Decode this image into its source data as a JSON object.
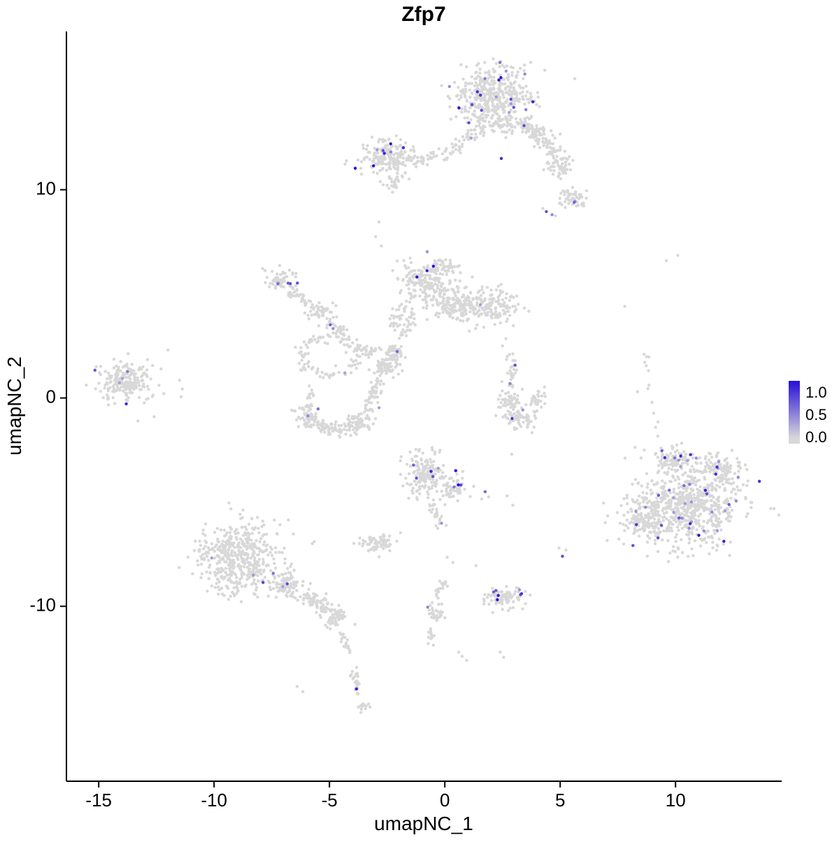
{
  "title": "Zfp7",
  "axes": {
    "x_label": "umapNC_1",
    "y_label": "umapNC_2",
    "x_ticks": [
      -15,
      -10,
      -5,
      0,
      5,
      10
    ],
    "y_ticks": [
      -10,
      0,
      10
    ]
  },
  "legend": {
    "ticks": [
      "1.0",
      "0.5",
      "0.0"
    ]
  },
  "colors": {
    "low": "#d8d8d8",
    "high": "#2a12d8",
    "axis": "#000000",
    "background": "#ffffff"
  },
  "chart_data": {
    "type": "scatter",
    "title": "Zfp7",
    "xlabel": "umapNC_1",
    "ylabel": "umapNC_2",
    "xlim": [
      -16.4,
      14.6
    ],
    "ylim": [
      -18.4,
      17.6
    ],
    "grid": false,
    "legend_position": "right",
    "colorbar": {
      "label_values": [
        1.0,
        0.5,
        0.0
      ],
      "value_top": 1.28,
      "value_bottom": -0.12,
      "low_color": "#d8d8d8",
      "high_color": "#2a12d8"
    },
    "point_radius_px": 2.2,
    "expression_value_range": [
      0.35,
      1.3
    ],
    "clusters": [
      {
        "name": "top-main",
        "type": "blob",
        "cx": 2.1,
        "cy": 14.6,
        "rx": 1.5,
        "ry": 1.25,
        "n": 400,
        "expr_frac": 0.04
      },
      {
        "name": "top-main-south",
        "type": "blob",
        "cx": 2.4,
        "cy": 13.2,
        "rx": 1.0,
        "ry": 0.5,
        "n": 80,
        "expr_frac": 0.02
      },
      {
        "name": "top-arm",
        "type": "strand",
        "x1": 3.4,
        "y1": 13.2,
        "x2": 4.8,
        "y2": 11.8,
        "w": 0.45,
        "n": 110,
        "expr_frac": 0.01
      },
      {
        "name": "top-arm-blob",
        "type": "blob",
        "cx": 5.0,
        "cy": 11.2,
        "rx": 0.55,
        "ry": 0.5,
        "n": 60,
        "expr_frac": 0
      },
      {
        "name": "top-right-blob",
        "type": "blob",
        "cx": 5.6,
        "cy": 9.6,
        "rx": 0.55,
        "ry": 0.45,
        "n": 55,
        "expr_frac": 0.05
      },
      {
        "name": "top-bridge",
        "type": "strand",
        "x1": 0.3,
        "y1": 11.9,
        "x2": 1.7,
        "y2": 13.1,
        "w": 0.35,
        "n": 45,
        "expr_frac": 0.02
      },
      {
        "name": "upper-left-main",
        "type": "blob",
        "cx": -2.55,
        "cy": 11.5,
        "rx": 1.05,
        "ry": 0.75,
        "n": 190,
        "expr_frac": 0.05
      },
      {
        "name": "upper-left-arm",
        "type": "strand",
        "x1": -1.3,
        "y1": 11.3,
        "x2": 0.2,
        "y2": 11.8,
        "w": 0.3,
        "n": 40,
        "expr_frac": 0
      },
      {
        "name": "upper-left-spur",
        "type": "blob",
        "cx": -2.25,
        "cy": 10.35,
        "rx": 0.4,
        "ry": 0.3,
        "n": 25,
        "expr_frac": 0
      },
      {
        "name": "mid-left-lobe",
        "type": "blob",
        "cx": -0.9,
        "cy": 5.6,
        "rx": 0.95,
        "ry": 1.0,
        "n": 180,
        "expr_frac": 0.02
      },
      {
        "name": "mid-center-lobe",
        "type": "blob",
        "cx": 0.4,
        "cy": 4.6,
        "rx": 1.0,
        "ry": 0.85,
        "n": 170,
        "expr_frac": 0.01
      },
      {
        "name": "mid-right-lobe",
        "type": "blob",
        "cx": 2.0,
        "cy": 4.35,
        "rx": 1.05,
        "ry": 0.7,
        "n": 150,
        "expr_frac": 0.013
      },
      {
        "name": "mid-top-bump",
        "type": "blob",
        "cx": 0.0,
        "cy": 6.3,
        "rx": 0.5,
        "ry": 0.4,
        "n": 40,
        "expr_frac": 0.05
      },
      {
        "name": "mid-tail",
        "type": "strand",
        "x1": -1.6,
        "y1": 4.4,
        "x2": -2.3,
        "y2": 3.4,
        "w": 0.3,
        "n": 30,
        "expr_frac": 0
      },
      {
        "name": "chain-top-blob",
        "type": "blob",
        "cx": -7.2,
        "cy": 5.75,
        "rx": 0.6,
        "ry": 0.5,
        "n": 55,
        "expr_frac": 0.09
      },
      {
        "name": "chain-strand-1",
        "type": "strand",
        "x1": -6.7,
        "y1": 5.2,
        "x2": -5.9,
        "y2": 4.5,
        "w": 0.3,
        "n": 35,
        "expr_frac": 0.03
      },
      {
        "name": "chain-mid-blob",
        "type": "blob",
        "cx": -5.4,
        "cy": 4.15,
        "rx": 0.5,
        "ry": 0.4,
        "n": 45,
        "expr_frac": 0
      },
      {
        "name": "chain-strand-2",
        "type": "strand",
        "x1": -5.1,
        "y1": 3.7,
        "x2": -4.4,
        "y2": 3.1,
        "w": 0.25,
        "n": 25,
        "expr_frac": 0.06
      },
      {
        "name": "chain-ring",
        "type": "ring",
        "cx": -5.0,
        "cy": 2.0,
        "rx": 1.25,
        "ry": 0.95,
        "band": 0.3,
        "n": 105,
        "expr_frac": 0.01
      },
      {
        "name": "chain-link",
        "type": "strand",
        "x1": -3.9,
        "y1": 2.5,
        "x2": -3.1,
        "y2": 2.15,
        "w": 0.25,
        "n": 30,
        "expr_frac": 0
      },
      {
        "name": "far-left-main",
        "type": "blob",
        "cx": -13.9,
        "cy": 0.8,
        "rx": 0.95,
        "ry": 0.8,
        "n": 180,
        "expr_frac": 0.035
      },
      {
        "name": "far-left-halo",
        "type": "blob",
        "cx": -13.6,
        "cy": 0.6,
        "rx": 1.5,
        "ry": 1.2,
        "n": 30,
        "expr_frac": 0
      },
      {
        "name": "loop-blob-1",
        "type": "blob",
        "cx": -5.9,
        "cy": -0.9,
        "rx": 0.55,
        "ry": 0.5,
        "n": 65,
        "expr_frac": 0.02
      },
      {
        "name": "loop-strand-1",
        "type": "strand",
        "x1": -5.4,
        "y1": -1.35,
        "x2": -4.3,
        "y2": -1.6,
        "w": 0.3,
        "n": 55,
        "expr_frac": 0
      },
      {
        "name": "loop-blob-2",
        "type": "blob",
        "cx": -3.8,
        "cy": -1.15,
        "rx": 0.65,
        "ry": 0.5,
        "n": 75,
        "expr_frac": 0.013
      },
      {
        "name": "loop-strand-2",
        "type": "strand",
        "x1": -3.4,
        "y1": -0.5,
        "x2": -2.8,
        "y2": 0.8,
        "w": 0.3,
        "n": 45,
        "expr_frac": 0
      },
      {
        "name": "loop-blob-3",
        "type": "blob",
        "cx": -2.55,
        "cy": 1.5,
        "rx": 0.55,
        "ry": 0.5,
        "n": 65,
        "expr_frac": 0.03
      },
      {
        "name": "loop-dense",
        "type": "blob",
        "cx": -2.2,
        "cy": 2.15,
        "rx": 0.35,
        "ry": 0.3,
        "n": 45,
        "expr_frac": 0
      },
      {
        "name": "loop-up-strand",
        "type": "strand",
        "x1": -1.9,
        "y1": 2.9,
        "x2": -1.3,
        "y2": 4.1,
        "w": 0.25,
        "n": 25,
        "expr_frac": 0
      },
      {
        "name": "loop-left-link",
        "type": "strand",
        "x1": -5.75,
        "y1": 0.5,
        "x2": -5.95,
        "y2": -0.4,
        "w": 0.2,
        "n": 18,
        "expr_frac": 0
      },
      {
        "name": "right-mid-blob-1",
        "type": "blob",
        "cx": 2.75,
        "cy": -0.15,
        "rx": 0.5,
        "ry": 0.55,
        "n": 55,
        "expr_frac": 0
      },
      {
        "name": "right-mid-blob-2",
        "type": "blob",
        "cx": 3.35,
        "cy": -0.95,
        "rx": 0.6,
        "ry": 0.5,
        "n": 70,
        "expr_frac": 0.04
      },
      {
        "name": "right-mid-strand",
        "type": "strand",
        "x1": 3.8,
        "y1": -0.3,
        "x2": 4.3,
        "y2": 0.4,
        "w": 0.25,
        "n": 25,
        "expr_frac": 0
      },
      {
        "name": "right-mid-up",
        "type": "strand",
        "x1": 2.85,
        "y1": 0.5,
        "x2": 2.95,
        "y2": 2.1,
        "w": 0.2,
        "n": 30,
        "expr_frac": 0.04
      },
      {
        "name": "center-low-main",
        "type": "blob",
        "cx": -0.8,
        "cy": -3.6,
        "rx": 0.85,
        "ry": 0.95,
        "n": 170,
        "expr_frac": 0.045
      },
      {
        "name": "center-low-right",
        "type": "blob",
        "cx": 0.3,
        "cy": -4.3,
        "rx": 0.5,
        "ry": 0.5,
        "n": 55,
        "expr_frac": 0.02
      },
      {
        "name": "center-low-tail",
        "type": "strand",
        "x1": -0.6,
        "y1": -5.0,
        "x2": -0.1,
        "y2": -6.3,
        "w": 0.25,
        "n": 22,
        "expr_frac": 0.04
      },
      {
        "name": "small-left-blob",
        "type": "blob",
        "cx": -2.9,
        "cy": -6.95,
        "rx": 0.65,
        "ry": 0.4,
        "n": 65,
        "expr_frac": 0
      },
      {
        "name": "lower-left-main",
        "type": "blob",
        "cx": -8.9,
        "cy": -7.7,
        "rx": 1.6,
        "ry": 1.5,
        "n": 430,
        "expr_frac": 0.008
      },
      {
        "name": "lower-left-halo",
        "type": "blob",
        "cx": -8.7,
        "cy": -7.5,
        "rx": 2.3,
        "ry": 2.1,
        "n": 60,
        "expr_frac": 0
      },
      {
        "name": "lower-left-ext",
        "type": "blob",
        "cx": -6.9,
        "cy": -9.0,
        "rx": 0.7,
        "ry": 0.6,
        "n": 85,
        "expr_frac": 0.01
      },
      {
        "name": "lower-left-strand",
        "type": "strand",
        "x1": -6.1,
        "y1": -9.4,
        "x2": -5.0,
        "y2": -10.2,
        "w": 0.35,
        "n": 60,
        "expr_frac": 0.02
      },
      {
        "name": "lower-left-blob-2",
        "type": "blob",
        "cx": -4.7,
        "cy": -10.5,
        "rx": 0.5,
        "ry": 0.45,
        "n": 55,
        "expr_frac": 0.02
      },
      {
        "name": "tail-strand-1",
        "type": "strand",
        "x1": -4.5,
        "y1": -11.2,
        "x2": -4.15,
        "y2": -12.3,
        "w": 0.2,
        "n": 20,
        "expr_frac": 0
      },
      {
        "name": "tail-strand-2",
        "type": "strand",
        "x1": -4.0,
        "y1": -12.9,
        "x2": -3.7,
        "y2": -14.3,
        "w": 0.18,
        "n": 26,
        "expr_frac": 0.05
      },
      {
        "name": "tail-end-blob",
        "type": "blob",
        "cx": -3.6,
        "cy": -14.8,
        "rx": 0.3,
        "ry": 0.25,
        "n": 13,
        "expr_frac": 0
      },
      {
        "name": "center-strand-1",
        "type": "strand",
        "x1": 0.0,
        "y1": -8.7,
        "x2": -0.3,
        "y2": -9.6,
        "w": 0.18,
        "n": 18,
        "expr_frac": 0
      },
      {
        "name": "center-bottom-blob",
        "type": "blob",
        "cx": -0.45,
        "cy": -10.3,
        "rx": 0.35,
        "ry": 0.45,
        "n": 30,
        "expr_frac": 0.05
      },
      {
        "name": "center-strand-2",
        "type": "strand",
        "x1": -0.55,
        "y1": -11.0,
        "x2": -0.65,
        "y2": -11.9,
        "w": 0.15,
        "n": 12,
        "expr_frac": 0
      },
      {
        "name": "bottom-dense",
        "type": "blob",
        "cx": 2.6,
        "cy": -9.5,
        "rx": 0.8,
        "ry": 0.45,
        "n": 95,
        "expr_frac": 0.12
      },
      {
        "name": "right-main",
        "type": "blob",
        "cx": 10.6,
        "cy": -5.2,
        "rx": 2.0,
        "ry": 1.7,
        "n": 650,
        "expr_frac": 0.045
      },
      {
        "name": "right-top-lobe",
        "type": "blob",
        "cx": 9.9,
        "cy": -3.0,
        "rx": 0.8,
        "ry": 0.55,
        "n": 90,
        "expr_frac": 0.05
      },
      {
        "name": "right-left-lobe",
        "type": "blob",
        "cx": 8.7,
        "cy": -5.8,
        "rx": 0.8,
        "ry": 0.9,
        "n": 130,
        "expr_frac": 0.03
      },
      {
        "name": "right-halo",
        "type": "blob",
        "cx": 10.6,
        "cy": -5.0,
        "rx": 2.6,
        "ry": 2.2,
        "n": 60,
        "expr_frac": 0.01
      },
      {
        "name": "right-ne-lobe",
        "type": "blob",
        "cx": 11.9,
        "cy": -3.3,
        "rx": 0.8,
        "ry": 0.5,
        "n": 80,
        "expr_frac": 0.06
      },
      {
        "name": "right-up-strand",
        "type": "strand",
        "x1": 8.6,
        "y1": 2.2,
        "x2": 9.3,
        "y2": -1.9,
        "w": 0.15,
        "n": 13,
        "expr_frac": 0
      }
    ],
    "singles": [
      [
        4.4,
        8.95,
        0.85
      ],
      [
        4.65,
        8.8,
        0.5
      ],
      [
        4.25,
        9.1,
        0
      ],
      [
        4.8,
        8.75,
        0
      ],
      [
        2.45,
        11.5,
        1.1
      ],
      [
        -12.3,
        1.4,
        0
      ],
      [
        -12.0,
        2.3,
        0
      ],
      [
        -11.5,
        0.85,
        0
      ],
      [
        -12.6,
        -0.9,
        0
      ],
      [
        -13.3,
        -1.1,
        0
      ],
      [
        2.5,
        2.5,
        0
      ],
      [
        2.65,
        2.85,
        0
      ],
      [
        1.75,
        -4.5,
        0.7
      ],
      [
        1.9,
        -4.75,
        0
      ],
      [
        1.6,
        -4.85,
        0
      ],
      [
        -6.4,
        -13.85,
        0
      ],
      [
        -6.15,
        -14.1,
        0
      ],
      [
        0.75,
        -12.4,
        0
      ],
      [
        0.95,
        -12.6,
        0
      ],
      [
        0.6,
        -12.2,
        0
      ],
      [
        2.4,
        -12.2,
        0
      ],
      [
        2.55,
        -12.45,
        0
      ],
      [
        1.35,
        -8.05,
        0
      ],
      [
        0.1,
        -7.65,
        0
      ],
      [
        0.35,
        -7.9,
        0
      ],
      [
        5.1,
        -7.6,
        0.85
      ],
      [
        5.25,
        -7.3,
        0
      ],
      [
        4.95,
        -7.2,
        0
      ],
      [
        9.6,
        6.6,
        0
      ],
      [
        10.1,
        6.85,
        0
      ],
      [
        7.8,
        4.4,
        0
      ],
      [
        8.35,
        0.3,
        0
      ],
      [
        -2.85,
        8.45,
        0
      ],
      [
        -3.0,
        7.75,
        0
      ],
      [
        -2.75,
        7.3,
        0
      ],
      [
        2.9,
        -2.7,
        0
      ],
      [
        2.7,
        -4.7,
        0
      ],
      [
        2.95,
        -5.15,
        0
      ]
    ]
  }
}
